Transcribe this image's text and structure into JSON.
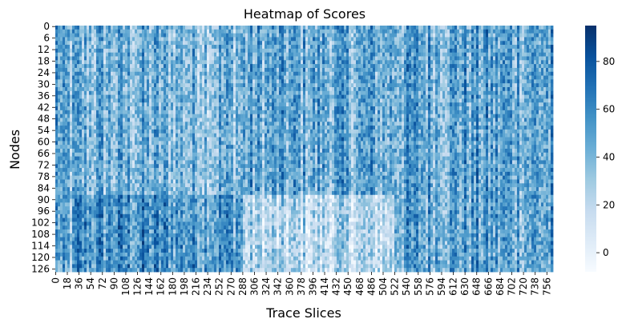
{
  "chart_data": {
    "type": "heatmap",
    "title": "Heatmap of Scores",
    "xlabel": "Trace Slices",
    "ylabel": "Nodes",
    "x_tick_labels": [
      "0",
      "18",
      "36",
      "54",
      "72",
      "90",
      "108",
      "126",
      "144",
      "162",
      "180",
      "198",
      "216",
      "234",
      "252",
      "270",
      "288",
      "306",
      "324",
      "342",
      "360",
      "378",
      "396",
      "414",
      "432",
      "450",
      "468",
      "486",
      "504",
      "522",
      "540",
      "558",
      "576",
      "594",
      "612",
      "630",
      "648",
      "666",
      "684",
      "702",
      "720",
      "738",
      "756"
    ],
    "y_tick_labels": [
      "0",
      "6",
      "12",
      "18",
      "24",
      "30",
      "36",
      "42",
      "48",
      "54",
      "60",
      "66",
      "72",
      "78",
      "84",
      "90",
      "96",
      "102",
      "108",
      "114",
      "120",
      "126"
    ],
    "x_range": [
      0,
      766
    ],
    "y_range": [
      0,
      128
    ],
    "colorbar": {
      "ticks": [
        "0",
        "20",
        "40",
        "60",
        "80"
      ],
      "range": [
        -8,
        95
      ],
      "colormap": "Blues"
    },
    "value_profile": {
      "description_of_regions": [
        {
          "x_range": [
            0,
            8
          ],
          "y_range": [
            0,
            128
          ],
          "mean_value": 55
        },
        {
          "x_range": [
            30,
            290
          ],
          "y_range": [
            0,
            88
          ],
          "mean_value": 40
        },
        {
          "x_range": [
            290,
            520
          ],
          "y_range": [
            0,
            88
          ],
          "mean_value": 45
        },
        {
          "x_range": [
            290,
            520
          ],
          "y_range": [
            88,
            128
          ],
          "mean_value": 20
        },
        {
          "x_range": [
            520,
            766
          ],
          "y_range": [
            0,
            128
          ],
          "mean_value": 48
        },
        {
          "x_range": [
            30,
            290
          ],
          "y_range": [
            88,
            128
          ],
          "mean_value": 55
        }
      ],
      "value_min": -8,
      "value_max": 95
    }
  }
}
